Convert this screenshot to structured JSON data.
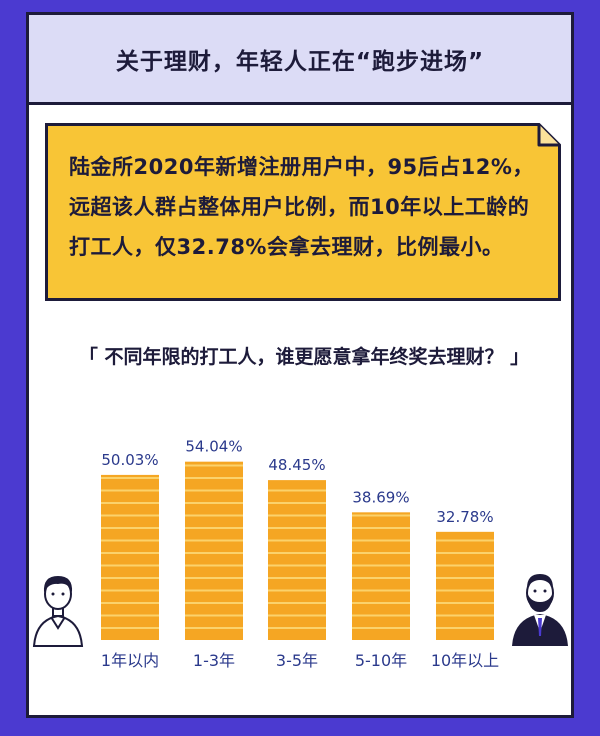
{
  "header": {
    "title": "关于理财，年轻人正在“跑步进场”"
  },
  "note": {
    "text": "陆金所2020年新增注册用户中，95后占12%，远超该人群占整体用户比例，而10年以上工龄的打工人，仅32.78%会拿去理财，比例最小。"
  },
  "chart_data": {
    "type": "bar",
    "title": "「 不同年限的打工人，谁更愿意拿年终奖去理财？ 」",
    "categories": [
      "1年以内",
      "1-3年",
      "3-5年",
      "5-10年",
      "10年以上"
    ],
    "values": [
      50.03,
      54.04,
      48.45,
      38.69,
      32.78
    ],
    "value_labels": [
      "50.03%",
      "54.04%",
      "48.45%",
      "38.69%",
      "32.78%"
    ],
    "ylim": [
      0,
      60
    ],
    "grid": false,
    "legend": "none"
  },
  "colors": {
    "background": "#4b3ad0",
    "header_bg": "#dcdcf6",
    "note_bg": "#f8c536",
    "bar_fill": "#f5a623",
    "bar_line": "#fbd26b",
    "text_dark": "#1d1b3a",
    "label_blue": "#2b3a8c"
  },
  "icons": [
    "young-man-icon",
    "bearded-man-icon"
  ]
}
